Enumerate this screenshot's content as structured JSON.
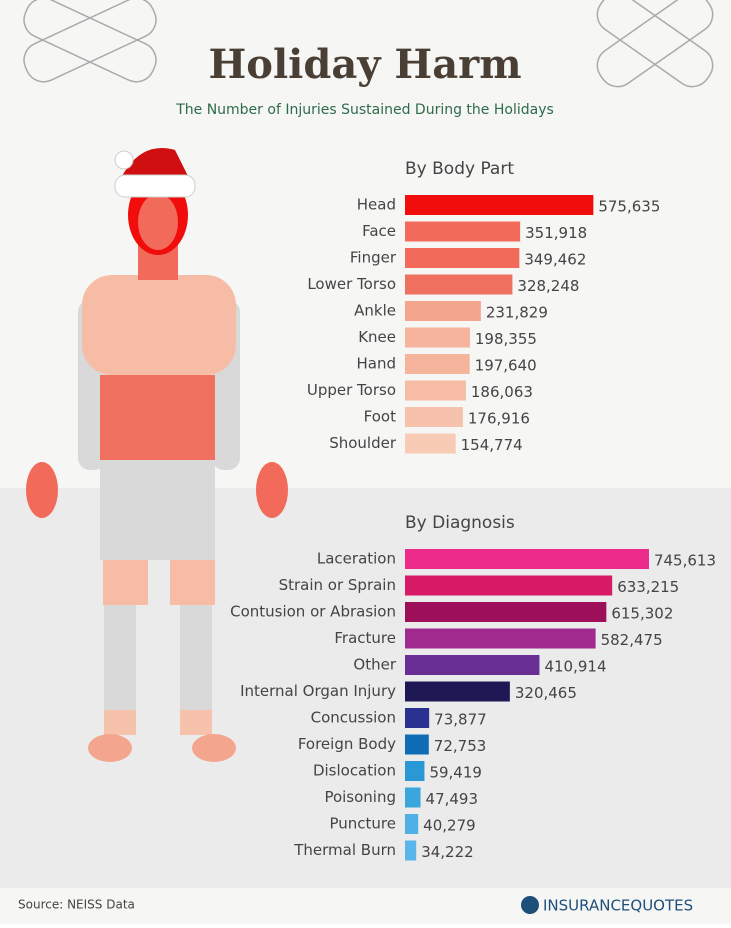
{
  "header": {
    "title": "Holiday Harm",
    "subtitle": "The Number of Injuries Sustained During the Holidays"
  },
  "chart_data": [
    {
      "type": "bar",
      "title": "By Body Part",
      "categories": [
        "Head",
        "Face",
        "Finger",
        "Lower Torso",
        "Ankle",
        "Knee",
        "Hand",
        "Upper Torso",
        "Foot",
        "Shoulder"
      ],
      "values": [
        575635,
        351918,
        349462,
        328248,
        231829,
        198355,
        197640,
        186063,
        176916,
        154774
      ],
      "value_labels": [
        "575,635",
        "351,918",
        "349,462",
        "328,248",
        "231,829",
        "198,355",
        "197,640",
        "186,063",
        "176,916",
        "154,774"
      ],
      "colors": [
        "#f20d0d",
        "#f26a5a",
        "#f26a5a",
        "#f07060",
        "#f4a58e",
        "#f6b49c",
        "#f6b49c",
        "#f6bca5",
        "#f7c2ab",
        "#f8cbb4"
      ]
    },
    {
      "type": "bar",
      "title": "By Diagnosis",
      "categories": [
        "Laceration",
        "Strain or Sprain",
        "Contusion or Abrasion",
        "Fracture",
        "Other",
        "Internal Organ Injury",
        "Concussion",
        "Foreign Body",
        "Dislocation",
        "Poisoning",
        "Puncture",
        "Thermal Burn"
      ],
      "values": [
        745613,
        633215,
        615302,
        582475,
        410914,
        320465,
        73877,
        72753,
        59419,
        47493,
        40279,
        34222
      ],
      "value_labels": [
        "745,613",
        "633,215",
        "615,302",
        "582,475",
        "410,914",
        "320,465",
        "73,877",
        "72,753",
        "59,419",
        "47,493",
        "40,279",
        "34,222"
      ],
      "colors": [
        "#ec2a8a",
        "#d61a66",
        "#9e0f5a",
        "#a02a8e",
        "#6a2f94",
        "#1e1854",
        "#2b3191",
        "#0e6cb5",
        "#2998d4",
        "#3aa6dc",
        "#4eb0e4",
        "#5ab6e8"
      ]
    }
  ],
  "footer": {
    "source": "Source: NEISS Data",
    "logo": "INSURANCEQUOTES"
  }
}
